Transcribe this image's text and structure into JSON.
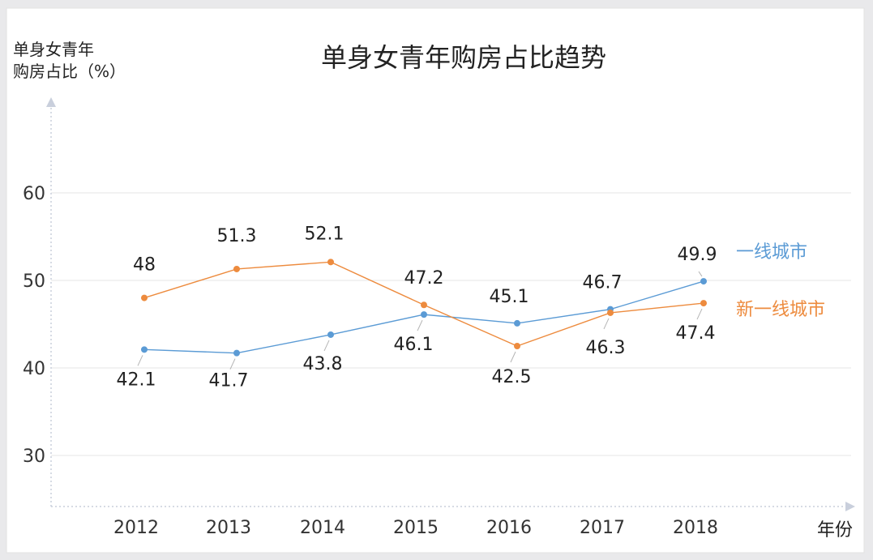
{
  "chart_data": {
    "type": "line",
    "title": "单身女青年购房占比趋势",
    "ylabel_line1": "单身女青年",
    "ylabel_line2": "购房占比（%）",
    "xlabel": "年份",
    "categories": [
      "2012",
      "2013",
      "2014",
      "2015",
      "2016",
      "2017",
      "2018"
    ],
    "yticks": [
      "30",
      "40",
      "50",
      "60"
    ],
    "ylim": [
      24,
      68
    ],
    "grid": true,
    "series": [
      {
        "name": "一线城市",
        "color": "#5b9bd5",
        "values": [
          42.1,
          41.7,
          43.8,
          46.1,
          45.1,
          46.7,
          49.9
        ],
        "labels": [
          "42.1",
          "41.7",
          "43.8",
          "46.1",
          "45.1",
          "46.7",
          "49.9"
        ]
      },
      {
        "name": "新一线城市",
        "color": "#ed8b3e",
        "values": [
          48,
          51.3,
          52.1,
          47.2,
          42.5,
          46.3,
          47.4
        ],
        "labels": [
          "48",
          "51.3",
          "52.1",
          "47.2",
          "42.5",
          "46.3",
          "47.4"
        ]
      }
    ]
  }
}
